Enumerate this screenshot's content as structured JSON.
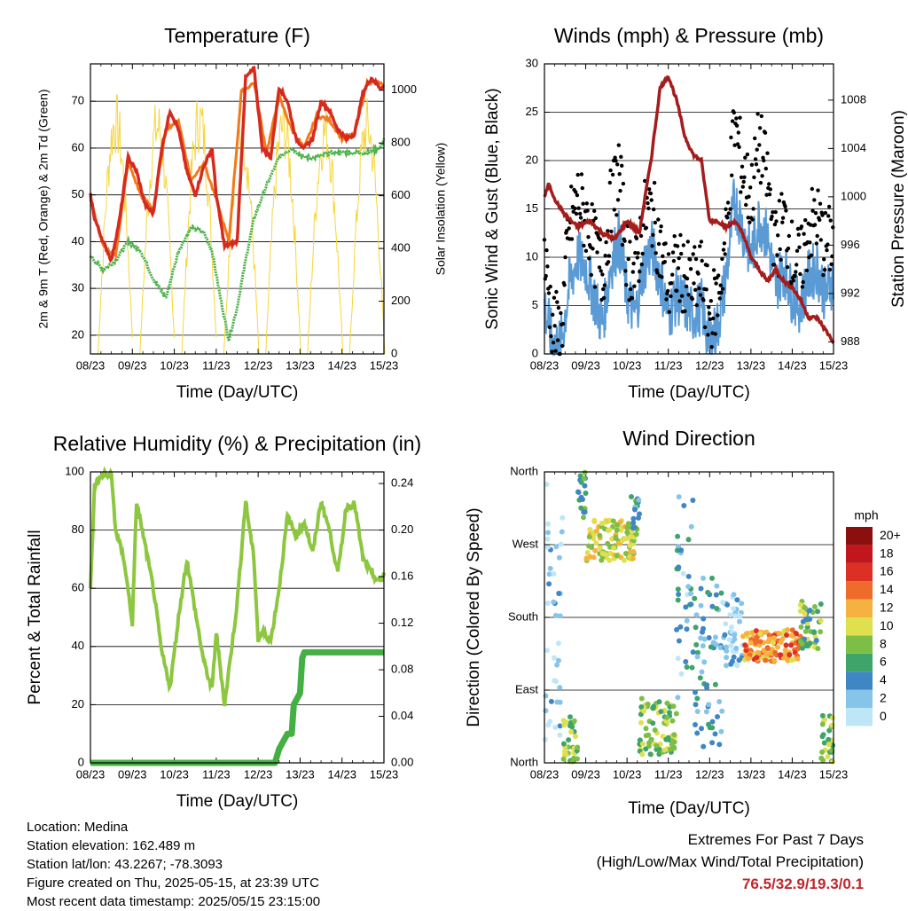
{
  "footer": {
    "location": "Location: Medina",
    "elevation": "Station elevation: 162.489 m",
    "latlon": "Station lat/lon: 43.2267; -78.3093",
    "created": "Figure created on Thu, 2025-05-15, at 23:39 UTC",
    "recent": "Most recent data timestamp: 2025/05/15 23:15:00",
    "extremes_title": "Extremes For Past 7 Days",
    "extremes_sub": "(High/Low/Max Wind/Total Precipitation)",
    "extremes_values": "76.5/32.9/19.3/0.1"
  },
  "chart_data": [
    {
      "type": "line",
      "title": "Temperature (F)",
      "xlabel": "Time (Day/UTC)",
      "ylabel": "2m & 9m T (Red, Orange) & 2m Td (Green)",
      "ylabel_right": "Solar Insolation (Yellow)",
      "x_ticks": [
        "08/23",
        "09/23",
        "10/23",
        "11/23",
        "12/23",
        "13/23",
        "14/23",
        "15/23"
      ],
      "ylim": [
        16,
        78
      ],
      "y_ticks": [
        20,
        30,
        40,
        50,
        60,
        70
      ],
      "ylim_right": [
        0,
        1100
      ],
      "y_ticks_right": [
        0,
        200,
        400,
        600,
        800,
        1000
      ],
      "series": [
        {
          "name": "2m T",
          "color": "#d62a1e",
          "x": [
            0,
            0.1,
            0.3,
            0.5,
            0.7,
            0.9,
            1.1,
            1.3,
            1.5,
            1.7,
            1.9,
            2.1,
            2.3,
            2.5,
            2.7,
            2.9,
            3.0,
            3.2,
            3.5,
            3.7,
            3.9,
            4.1,
            4.3,
            4.5,
            4.7,
            4.9,
            5.1,
            5.3,
            5.5,
            5.7,
            5.9,
            6.1,
            6.3,
            6.5,
            6.7,
            6.9,
            7.0
          ],
          "y": [
            50,
            45,
            40,
            36,
            45,
            58,
            55,
            48,
            46,
            60,
            68,
            64,
            55,
            50,
            56,
            60,
            50,
            39,
            40,
            75,
            77,
            60,
            58,
            73,
            70,
            62,
            60,
            62,
            70,
            68,
            64,
            62,
            63,
            72,
            75,
            73,
            73
          ]
        },
        {
          "name": "9m T",
          "color": "#f07a1c",
          "x": [
            0,
            0.3,
            0.6,
            0.9,
            1.2,
            1.5,
            1.8,
            2.1,
            2.4,
            2.7,
            3.0,
            3.3,
            3.6,
            3.9,
            4.2,
            4.5,
            4.8,
            5.1,
            5.4,
            5.7,
            6.0,
            6.3,
            6.6,
            6.9,
            7.0
          ],
          "y": [
            49,
            39,
            37,
            57,
            50,
            47,
            64,
            66,
            53,
            57,
            49,
            40,
            72,
            74,
            59,
            71,
            64,
            60,
            67,
            66,
            62,
            63,
            74,
            74,
            73
          ]
        },
        {
          "name": "2m Td",
          "color": "#4db24a",
          "x": [
            0,
            0.3,
            0.6,
            0.9,
            1.2,
            1.5,
            1.8,
            2.1,
            2.4,
            2.7,
            2.9,
            3.1,
            3.3,
            3.5,
            3.7,
            3.9,
            4.2,
            4.5,
            4.8,
            5.1,
            5.4,
            5.7,
            6.0,
            6.3,
            6.6,
            6.9,
            7.0
          ],
          "y": [
            37,
            34,
            36,
            40,
            38,
            32,
            28,
            38,
            43,
            42,
            38,
            28,
            19,
            26,
            36,
            45,
            52,
            58,
            60,
            58,
            58,
            59,
            59,
            59,
            59,
            60,
            62
          ]
        },
        {
          "name": "Solar Insolation",
          "color": "#f5d63c",
          "axis": "right",
          "day_centers": [
            0.6,
            1.6,
            2.6,
            3.6,
            4.6,
            5.6,
            6.6
          ],
          "peaks": [
            1000,
            980,
            1010,
            950,
            980,
            960,
            980
          ]
        }
      ]
    },
    {
      "type": "line",
      "title": "Winds (mph) & Pressure (mb)",
      "xlabel": "Time (Day/UTC)",
      "ylabel": "Sonic Wind & Gust (Blue, Black)",
      "ylabel_right": "Station Pressure (Maroon)",
      "x_ticks": [
        "08/23",
        "09/23",
        "10/23",
        "11/23",
        "12/23",
        "13/23",
        "14/23",
        "15/23"
      ],
      "ylim": [
        0,
        30
      ],
      "y_ticks": [
        0,
        5,
        10,
        15,
        20,
        25,
        30
      ],
      "ylim_right": [
        987,
        1011
      ],
      "y_ticks_right": [
        988,
        992,
        996,
        1000,
        1004,
        1008
      ],
      "series": [
        {
          "name": "Sonic Wind",
          "color": "#5b9bd5",
          "x": [
            0,
            0.2,
            0.4,
            0.6,
            0.8,
            1.0,
            1.2,
            1.4,
            1.6,
            1.8,
            2.0,
            2.2,
            2.4,
            2.6,
            2.8,
            3.0,
            3.2,
            3.4,
            3.6,
            3.8,
            4.0,
            4.2,
            4.4,
            4.6,
            4.8,
            5.0,
            5.2,
            5.4,
            5.6,
            5.8,
            6.0,
            6.2,
            6.4,
            6.6,
            6.8,
            7.0
          ],
          "y": [
            5,
            1,
            1,
            7,
            10,
            9,
            6,
            3,
            9,
            12,
            6,
            4,
            9,
            11,
            8,
            4,
            6,
            5,
            4,
            5,
            1,
            3,
            8,
            16,
            13,
            10,
            14,
            12,
            7,
            9,
            6,
            5,
            8,
            9,
            6,
            8
          ]
        },
        {
          "name": "Gust",
          "color": "#000000",
          "x": [
            0,
            0.2,
            0.4,
            0.6,
            0.8,
            1.0,
            1.2,
            1.4,
            1.6,
            1.8,
            2.0,
            2.2,
            2.4,
            2.6,
            2.8,
            3.0,
            3.2,
            3.4,
            3.6,
            3.8,
            4.0,
            4.2,
            4.4,
            4.6,
            4.8,
            5.0,
            5.2,
            5.4,
            5.6,
            5.8,
            6.0,
            6.2,
            6.4,
            6.6,
            6.8,
            7.0
          ],
          "y": [
            10,
            3,
            2,
            13,
            16,
            14,
            11,
            8,
            15,
            19,
            10,
            8,
            14,
            15,
            11,
            7,
            9,
            8,
            7,
            8,
            4,
            6,
            12,
            24,
            19,
            16,
            22,
            18,
            11,
            14,
            10,
            9,
            13,
            14,
            11,
            12
          ]
        },
        {
          "name": "Station Pressure",
          "color": "#a31d1d",
          "axis": "right",
          "x": [
            0,
            0.1,
            0.3,
            0.5,
            0.8,
            1.1,
            1.4,
            1.7,
            2.0,
            2.3,
            2.6,
            2.8,
            3.0,
            3.2,
            3.4,
            3.6,
            3.8,
            4.0,
            4.2,
            4.4,
            4.6,
            4.8,
            5.0,
            5.2,
            5.4,
            5.6,
            5.8,
            6.0,
            6.2,
            6.4,
            6.6,
            6.8,
            7.0
          ],
          "y": [
            1000,
            1001,
            999.5,
            998.5,
            997.5,
            998,
            997,
            996.5,
            998,
            997,
            1003.5,
            1009,
            1010,
            1008,
            1005,
            1003.5,
            1003,
            998,
            998,
            997.5,
            998,
            997,
            995,
            994,
            993,
            994,
            993,
            992.5,
            991.5,
            990,
            990,
            989,
            988
          ]
        }
      ]
    },
    {
      "type": "line",
      "title": "Relative Humidity (%) & Precipitation (in)",
      "xlabel": "Time (Day/UTC)",
      "ylabel": "Percent & Total Rainfall",
      "x_ticks": [
        "08/23",
        "09/23",
        "10/23",
        "11/23",
        "12/23",
        "13/23",
        "14/23",
        "15/23"
      ],
      "ylim": [
        0,
        100
      ],
      "y_ticks": [
        0,
        20,
        40,
        60,
        80,
        100
      ],
      "ylim_right": [
        0,
        0.25
      ],
      "y_ticks_right": [
        "0.00",
        "0.04",
        "0.08",
        "0.12",
        "0.16",
        "0.20",
        "0.24"
      ],
      "series": [
        {
          "name": "Relative Humidity",
          "color": "#8dc63f",
          "x": [
            0,
            0.1,
            0.3,
            0.5,
            0.6,
            0.8,
            1.0,
            1.1,
            1.3,
            1.5,
            1.7,
            1.9,
            2.1,
            2.3,
            2.5,
            2.7,
            2.9,
            3.0,
            3.2,
            3.5,
            3.7,
            3.9,
            4.0,
            4.1,
            4.3,
            4.5,
            4.7,
            4.9,
            5.1,
            5.3,
            5.5,
            5.7,
            5.9,
            6.1,
            6.3,
            6.5,
            6.7,
            6.9,
            7.0
          ],
          "y": [
            60,
            95,
            99,
            99,
            80,
            70,
            48,
            90,
            75,
            60,
            38,
            26,
            50,
            70,
            52,
            35,
            25,
            45,
            20,
            55,
            90,
            70,
            42,
            45,
            42,
            60,
            85,
            78,
            83,
            72,
            90,
            80,
            65,
            88,
            89,
            70,
            65,
            62,
            65
          ]
        },
        {
          "name": "Total Precipitation",
          "color": "#44b044",
          "axis": "right",
          "x": [
            0,
            4.4,
            4.5,
            4.7,
            4.8,
            4.85,
            5.0,
            5.05,
            5.1,
            5.3,
            7.0
          ],
          "y": [
            0,
            0,
            0.012,
            0.025,
            0.025,
            0.05,
            0.06,
            0.09,
            0.095,
            0.095,
            0.095
          ]
        }
      ]
    },
    {
      "type": "scatter",
      "title": "Wind Direction",
      "xlabel": "Time (Day/UTC)",
      "ylabel": "Direction (Colored By Speed)",
      "x_ticks": [
        "08/23",
        "09/23",
        "10/23",
        "11/23",
        "12/23",
        "13/23",
        "14/23",
        "15/23"
      ],
      "y_ticks": [
        "North",
        "East",
        "South",
        "West",
        "North"
      ],
      "legend_title": "mph",
      "legend_labels": [
        "0",
        "2",
        "4",
        "6",
        "8",
        "10",
        "12",
        "14",
        "16",
        "18",
        "20+"
      ],
      "legend_colors": [
        "#bfe6f7",
        "#87c4ea",
        "#3f86c4",
        "#3fa46a",
        "#7dbf46",
        "#e0df4e",
        "#f6b241",
        "#ef6b2c",
        "#dd3024",
        "#c0161c",
        "#8c0f10"
      ],
      "clusters": [
        {
          "x0": 0.0,
          "x1": 0.45,
          "d0": 20,
          "d1": 350,
          "speed": 1
        },
        {
          "x0": 0.45,
          "x1": 0.8,
          "d0": 0,
          "d1": 60,
          "speed": 8
        },
        {
          "x0": 0.8,
          "x1": 1.0,
          "d0": 300,
          "d1": 360,
          "speed": 6
        },
        {
          "x0": 1.0,
          "x1": 2.2,
          "d0": 250,
          "d1": 300,
          "speed": 10
        },
        {
          "x0": 2.1,
          "x1": 2.3,
          "d0": 280,
          "d1": 330,
          "speed": 5
        },
        {
          "x0": 2.3,
          "x1": 3.2,
          "d0": 10,
          "d1": 80,
          "speed": 8
        },
        {
          "x0": 3.2,
          "x1": 3.6,
          "d0": 60,
          "d1": 360,
          "speed": 3
        },
        {
          "x0": 3.6,
          "x1": 4.3,
          "d0": 20,
          "d1": 240,
          "speed": 4
        },
        {
          "x0": 4.3,
          "x1": 4.8,
          "d0": 120,
          "d1": 210,
          "speed": 2
        },
        {
          "x0": 4.8,
          "x1": 6.2,
          "d0": 125,
          "d1": 165,
          "speed": 13
        },
        {
          "x0": 6.2,
          "x1": 6.7,
          "d0": 140,
          "d1": 200,
          "speed": 7
        },
        {
          "x0": 6.7,
          "x1": 7.0,
          "d0": 0,
          "d1": 60,
          "speed": 8
        }
      ]
    }
  ]
}
